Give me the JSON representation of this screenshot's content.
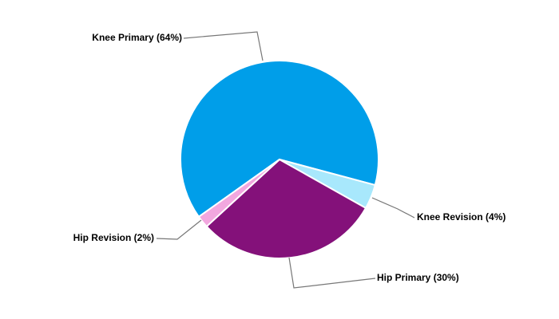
{
  "chart_data": {
    "type": "pie",
    "categories": [
      "Knee Primary (64%)",
      "Knee Revision (4%)",
      "Hip Primary (30%)",
      "Hip Revision (2%)"
    ],
    "values": [
      64,
      4,
      30,
      2
    ],
    "colors": [
      "#009ee9",
      "#a8e8fc",
      "#84117a",
      "#f2a7df"
    ]
  }
}
